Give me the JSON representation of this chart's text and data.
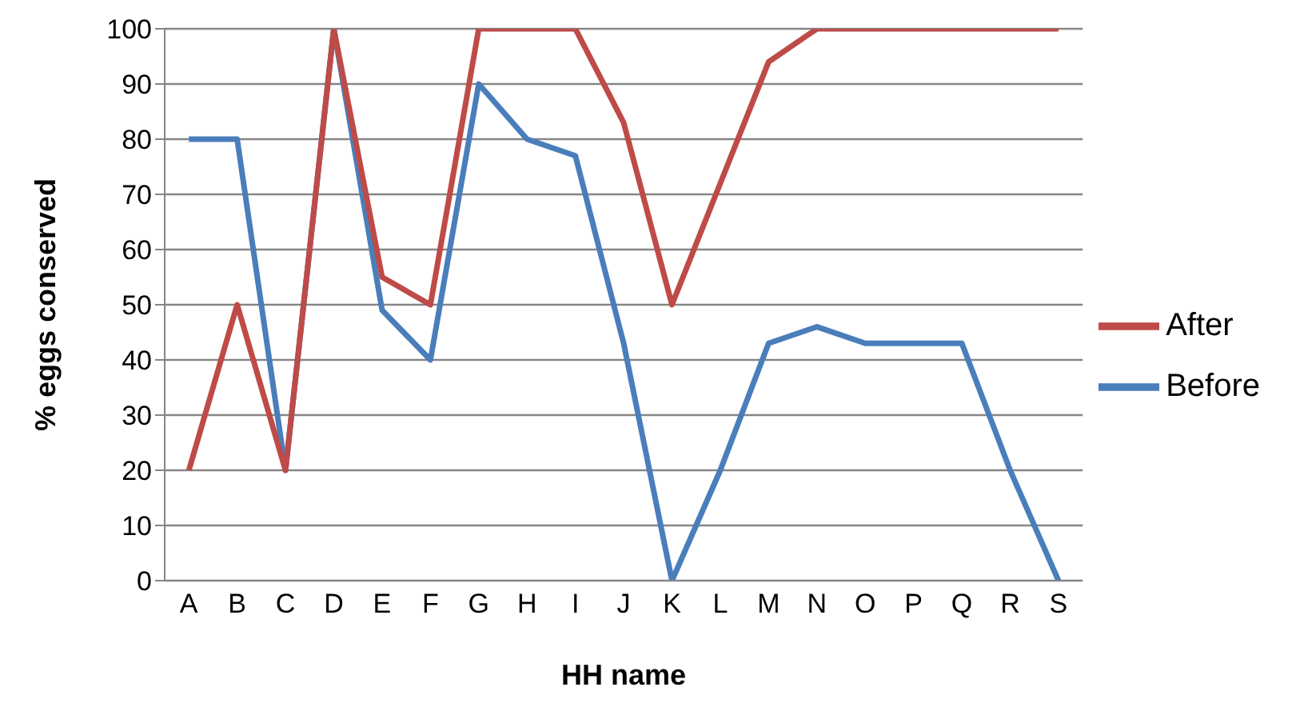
{
  "chart_data": {
    "type": "line",
    "xlabel": "HH name",
    "ylabel": "% eggs conserved",
    "categories": [
      "A",
      "B",
      "C",
      "D",
      "E",
      "F",
      "G",
      "H",
      "I",
      "J",
      "K",
      "L",
      "M",
      "N",
      "O",
      "P",
      "Q",
      "R",
      "S"
    ],
    "series": [
      {
        "name": "Before",
        "color": "#4a7ebb",
        "values": [
          80,
          80,
          20,
          100,
          49,
          40,
          90,
          80,
          77,
          43,
          0,
          20,
          43,
          46,
          43,
          43,
          43,
          20,
          0
        ]
      },
      {
        "name": "After",
        "color": "#be4b48",
        "values": [
          20,
          50,
          20,
          100,
          55,
          50,
          100,
          100,
          100,
          83,
          50,
          72,
          94,
          100,
          100,
          100,
          100,
          100,
          100
        ]
      }
    ],
    "ylim": [
      0,
      100
    ],
    "yticks": [
      0,
      10,
      20,
      30,
      40,
      50,
      60,
      70,
      80,
      90,
      100
    ],
    "grid": "y",
    "legend": "right",
    "marker": "none",
    "line_style": "solid"
  }
}
